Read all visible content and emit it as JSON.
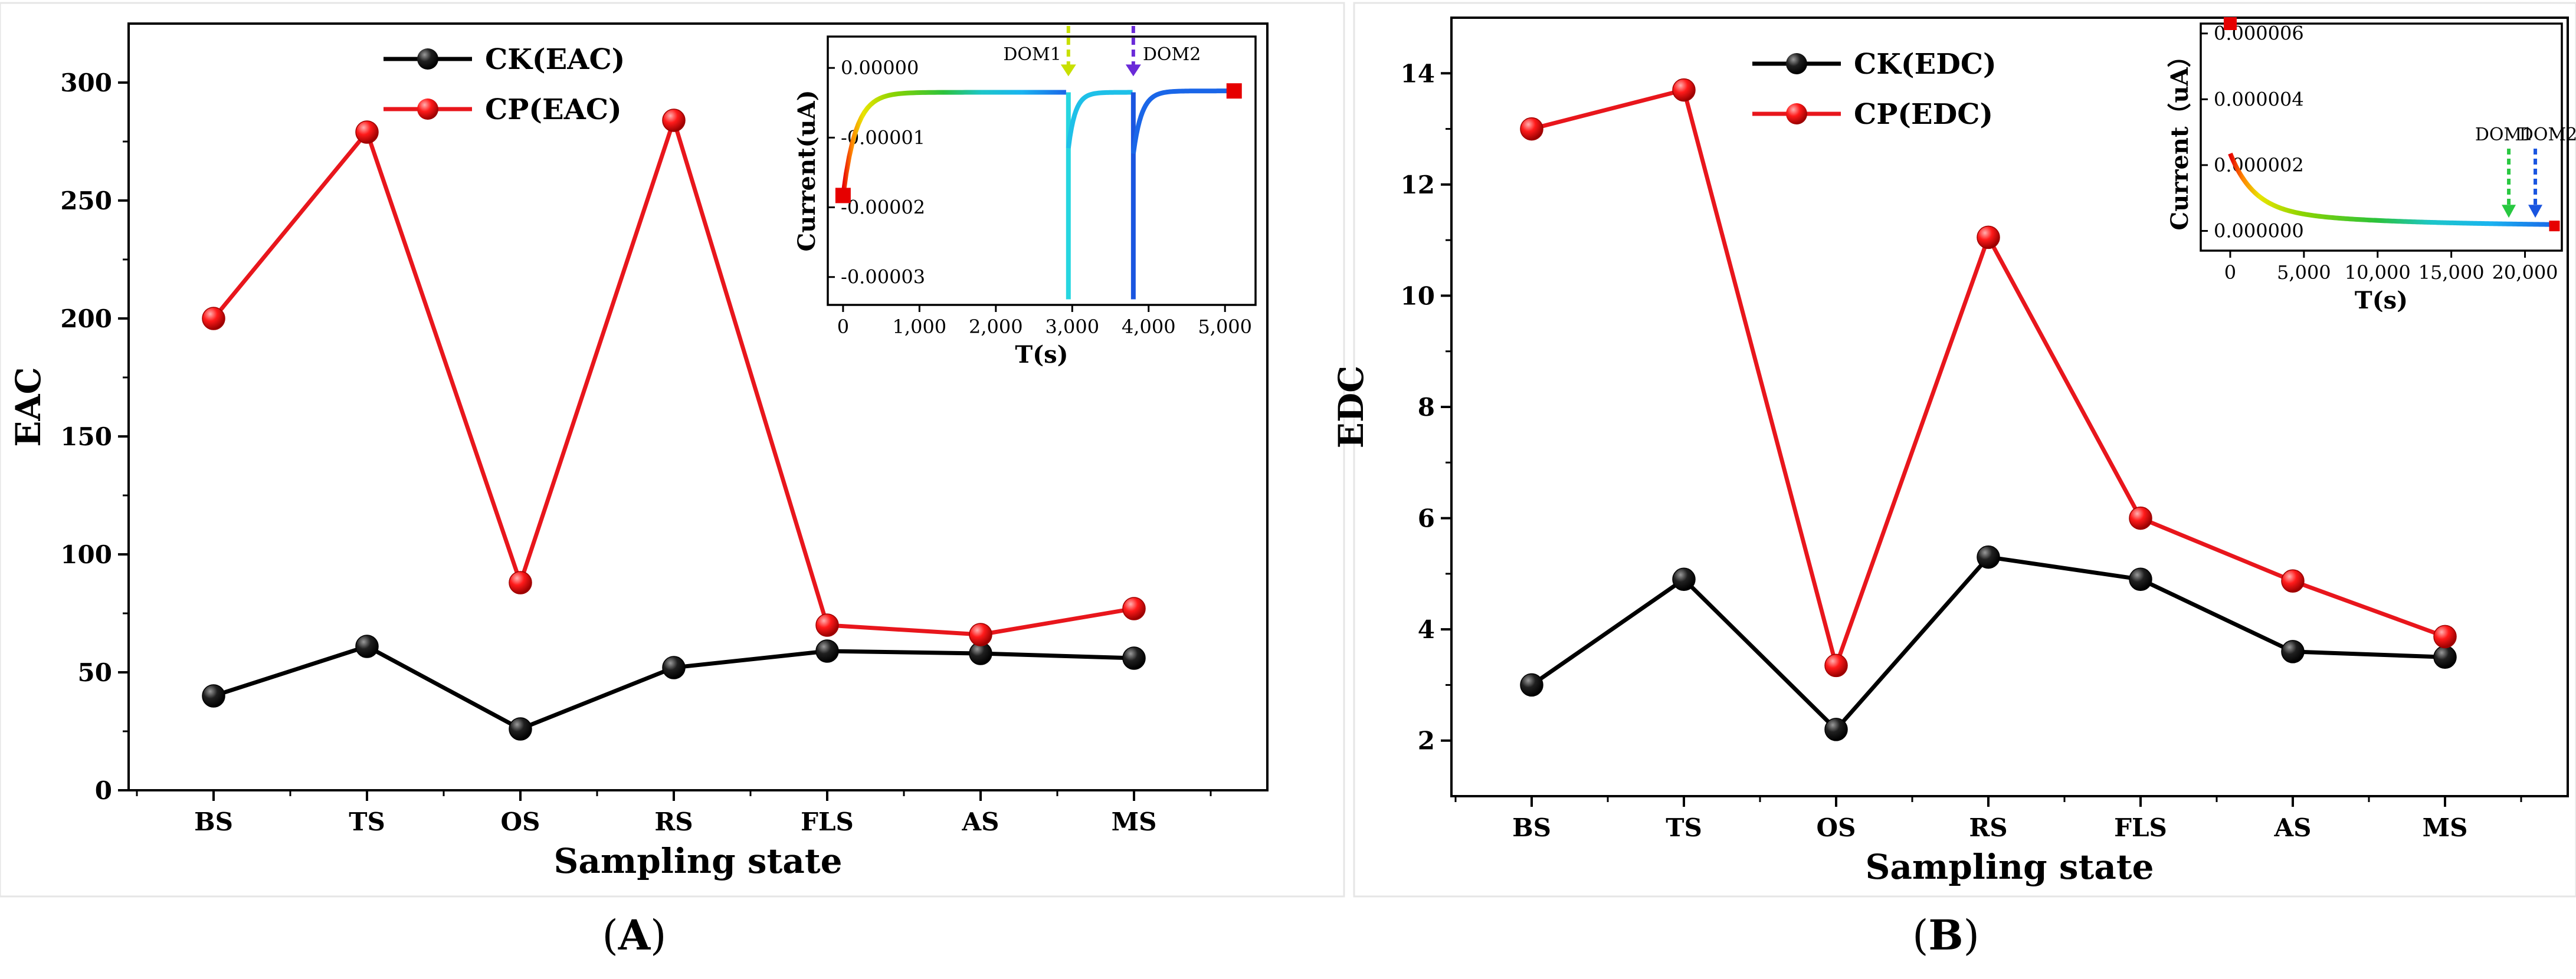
{
  "chart_data": [
    {
      "id": "A",
      "type": "line",
      "categories": [
        "BS",
        "TS",
        "OS",
        "RS",
        "FLS",
        "AS",
        "MS"
      ],
      "series": [
        {
          "name": "CK(EAC)",
          "color": "#000000",
          "values": [
            40,
            61,
            26,
            52,
            59,
            58,
            56
          ]
        },
        {
          "name": "CP(EAC)",
          "color": "#e8161c",
          "values": [
            200,
            279,
            88,
            284,
            70,
            66,
            77
          ]
        }
      ],
      "xlabel": "Sampling state",
      "ylabel": "EAC",
      "ylim": [
        0,
        325
      ],
      "yticks": [
        "0",
        "50",
        "100",
        "150",
        "200",
        "250",
        "300"
      ],
      "legend_position": "top-center",
      "caption_open": "(",
      "caption_letter": "A",
      "caption_close": ")",
      "inset": {
        "xlabel": "T(s)",
        "ylabel": "Current(uA)",
        "xlim": [
          -200,
          5400
        ],
        "ylim": [
          -3.4e-05,
          4.5e-06
        ],
        "xticks": [
          "0",
          "1,000",
          "2,000",
          "3,000",
          "4,000",
          "5,000"
        ],
        "yticks": [
          "0.00000",
          "-0.00001",
          "-0.00002",
          "-0.00003"
        ],
        "annotations": [
          "DOM1",
          "DOM2"
        ],
        "annotation_x": [
          2950,
          3800
        ]
      }
    },
    {
      "id": "B",
      "type": "line",
      "categories": [
        "BS",
        "TS",
        "OS",
        "RS",
        "FLS",
        "AS",
        "MS"
      ],
      "series": [
        {
          "name": "CK(EDC)",
          "color": "#000000",
          "values": [
            3.0,
            4.9,
            2.2,
            5.3,
            4.9,
            3.6,
            3.5
          ]
        },
        {
          "name": "CP(EDC)",
          "color": "#e8161c",
          "values": [
            13.0,
            13.7,
            3.35,
            11.05,
            6.0,
            4.87,
            3.87
          ]
        }
      ],
      "xlabel": "Sampling state",
      "ylabel": "EDC",
      "ylim": [
        1,
        15
      ],
      "yticks": [
        "2",
        "4",
        "6",
        "8",
        "10",
        "12",
        "14"
      ],
      "legend_position": "top-left",
      "caption_open": "(",
      "caption_letter": "B",
      "caption_close": ")",
      "inset": {
        "xlabel": "T(s)",
        "ylabel": "Current（uA）",
        "xlim": [
          -2000,
          22500
        ],
        "ylim": [
          -6e-07,
          6.3e-06
        ],
        "xticks": [
          "0",
          "5,000",
          "10,000",
          "15,000",
          "20,000"
        ],
        "yticks": [
          "0.000000",
          "0.000002",
          "0.000004",
          "0.000006"
        ],
        "annotations": [
          "DOM1",
          "DOM2"
        ],
        "annotation_x": [
          18900,
          20700
        ]
      }
    }
  ]
}
